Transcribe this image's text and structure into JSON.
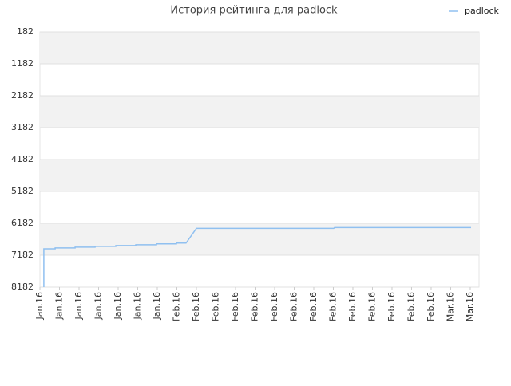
{
  "chart_data": {
    "type": "line",
    "title": "История рейтинга для padlock",
    "x": [
      0.2,
      0.2,
      0.78,
      0.78,
      1.8,
      1.8,
      2.82,
      2.82,
      3.88,
      3.88,
      4.9,
      4.9,
      5.96,
      5.96,
      6.98,
      6.98,
      7.47,
      8.0,
      15.02,
      15.06,
      22.04
    ],
    "series": [
      {
        "name": "padlock",
        "color": "#90c0f0",
        "values": [
          8182,
          6981,
          6981,
          6955,
          6955,
          6930,
          6930,
          6904,
          6904,
          6878,
          6878,
          6853,
          6853,
          6827,
          6827,
          6802,
          6802,
          6342,
          6342,
          6316,
          6316
        ]
      }
    ],
    "xlim": [
      0,
      22.45
    ],
    "xticks": [
      {
        "value": 0,
        "label": "Jan.16"
      },
      {
        "value": 1,
        "label": "Jan.16"
      },
      {
        "value": 2,
        "label": "Jan.16"
      },
      {
        "value": 3,
        "label": "Jan.16"
      },
      {
        "value": 4,
        "label": "Jan.16"
      },
      {
        "value": 5,
        "label": "Jan.16"
      },
      {
        "value": 6,
        "label": "Jan.16"
      },
      {
        "value": 7,
        "label": "Feb.16"
      },
      {
        "value": 8,
        "label": "Feb.16"
      },
      {
        "value": 9,
        "label": "Feb.16"
      },
      {
        "value": 10,
        "label": "Feb.16"
      },
      {
        "value": 11,
        "label": "Feb.16"
      },
      {
        "value": 12,
        "label": "Feb.16"
      },
      {
        "value": 13,
        "label": "Feb.16"
      },
      {
        "value": 14,
        "label": "Feb.16"
      },
      {
        "value": 15,
        "label": "Feb.16"
      },
      {
        "value": 16,
        "label": "Feb.16"
      },
      {
        "value": 17,
        "label": "Feb.16"
      },
      {
        "value": 18,
        "label": "Feb.16"
      },
      {
        "value": 19,
        "label": "Feb.16"
      },
      {
        "value": 20,
        "label": "Feb.16"
      },
      {
        "value": 21,
        "label": "Mar.16"
      },
      {
        "value": 22,
        "label": "Mar.16"
      }
    ],
    "ylim": [
      8182,
      182
    ],
    "yticks": [
      182,
      1182,
      2182,
      3182,
      4182,
      5182,
      6182,
      7182,
      8182
    ],
    "grid": true,
    "legend": "top-right"
  }
}
